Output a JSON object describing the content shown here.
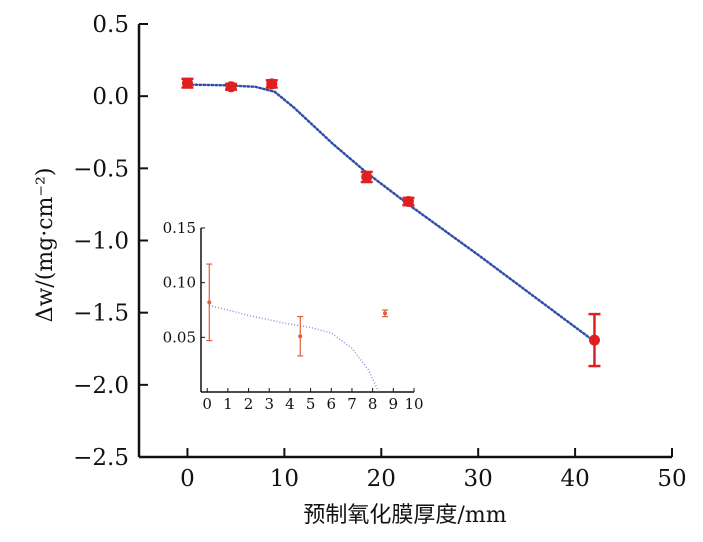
{
  "chart_data": [
    {
      "type": "scatter",
      "title": "",
      "xlabel": "预制氧化膜厚度/mm",
      "ylabel": "Δw/(mg·cm⁻²)",
      "xlim": [
        -5,
        50
      ],
      "ylim": [
        -2.5,
        0.5
      ],
      "x_ticks": [
        "0",
        "10",
        "20",
        "30",
        "40",
        "50"
      ],
      "y_ticks": [
        "0.5",
        "0.0",
        "−0.5",
        "−1.0",
        "−1.5",
        "−2.0",
        "−2.5"
      ],
      "grid": false,
      "legend": "none",
      "series": [
        {
          "color": "#e02020",
          "x": [
            0,
            4.5,
            8.7,
            18.5,
            22.8,
            42
          ],
          "y": [
            0.09,
            0.065,
            0.085,
            -0.56,
            -0.73,
            -1.69
          ],
          "yerr": [
            0.03,
            0.02,
            0.025,
            0.035,
            0.025,
            0.18
          ]
        }
      ],
      "fit_curve": {
        "style": "dotted",
        "color": "#2f4fa8",
        "x": [
          0,
          4,
          7,
          9,
          11,
          15,
          18.5,
          22.8,
          30,
          36,
          42
        ],
        "y": [
          0.08,
          0.075,
          0.065,
          0.03,
          -0.08,
          -0.33,
          -0.53,
          -0.75,
          -1.1,
          -1.4,
          -1.7
        ]
      }
    },
    {
      "type": "scatter",
      "title": "",
      "position": "inset",
      "xlim": [
        -0.3,
        10
      ],
      "ylim": [
        0,
        0.15
      ],
      "x_ticks": [
        "0",
        "1",
        "2",
        "3",
        "4",
        "5",
        "6",
        "7",
        "8",
        "9",
        "10"
      ],
      "y_ticks": [
        "0.15",
        "0.10",
        "0.05"
      ],
      "series": [
        {
          "color": "#e0603a",
          "x": [
            0.1,
            4.5,
            8.6
          ],
          "y": [
            0.082,
            0.051,
            0.072
          ],
          "yerr": [
            0.035,
            0.018,
            0.003
          ]
        }
      ],
      "fit_curve": {
        "style": "dotted",
        "color": "#8a8fd8",
        "x": [
          0.1,
          1,
          2,
          3,
          4,
          5,
          6,
          7,
          7.8,
          8.3
        ],
        "y": [
          0.079,
          0.075,
          0.07,
          0.066,
          0.062,
          0.059,
          0.054,
          0.04,
          0.02,
          0.0
        ]
      }
    }
  ]
}
